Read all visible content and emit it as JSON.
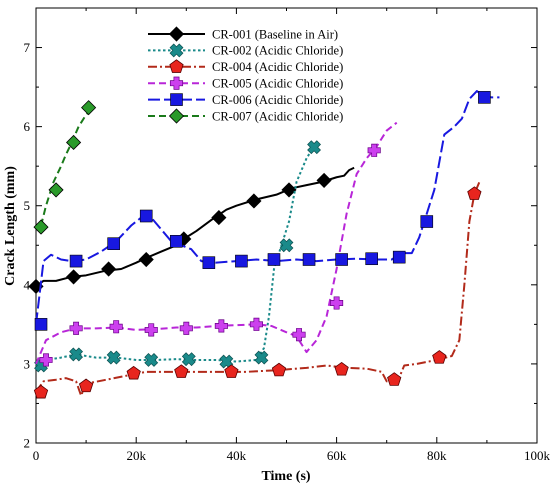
{
  "chart_data": {
    "type": "line",
    "xlabel": "Time (s)",
    "ylabel": "Crack Length (mm)",
    "xlim": [
      0,
      100000
    ],
    "ylim": [
      2,
      7.5
    ],
    "x_ticks": [
      0,
      20000,
      40000,
      60000,
      80000,
      100000
    ],
    "x_tick_labels": [
      "0",
      "20k",
      "40k",
      "60k",
      "80k",
      "100k"
    ],
    "y_ticks": [
      2,
      3,
      4,
      5,
      6,
      7
    ],
    "y_tick_labels": [
      "2",
      "3",
      "4",
      "5",
      "6",
      "7"
    ],
    "legend_position": "top-center",
    "grid": false,
    "series": [
      {
        "name": "CR-001 (Baseline in Air)",
        "color": "#000000",
        "dash": "solid",
        "marker": "diamond",
        "marker_fill": "#000000",
        "line": [
          [
            0,
            3.98
          ],
          [
            1500,
            4.05
          ],
          [
            4000,
            4.05
          ],
          [
            7000,
            4.1
          ],
          [
            10000,
            4.12
          ],
          [
            14000,
            4.18
          ],
          [
            17000,
            4.2
          ],
          [
            20000,
            4.28
          ],
          [
            22000,
            4.34
          ],
          [
            25000,
            4.42
          ],
          [
            28000,
            4.5
          ],
          [
            30000,
            4.6
          ],
          [
            32000,
            4.68
          ],
          [
            35000,
            4.82
          ],
          [
            38000,
            4.95
          ],
          [
            40000,
            5.0
          ],
          [
            44000,
            5.08
          ],
          [
            48000,
            5.14
          ],
          [
            51000,
            5.22
          ],
          [
            54000,
            5.26
          ],
          [
            57000,
            5.3
          ],
          [
            60000,
            5.36
          ],
          [
            61500,
            5.38
          ],
          [
            62500,
            5.45
          ],
          [
            63500,
            5.48
          ]
        ],
        "markers": [
          [
            0,
            3.98
          ],
          [
            7500,
            4.1
          ],
          [
            14500,
            4.2
          ],
          [
            22000,
            4.32
          ],
          [
            29500,
            4.58
          ],
          [
            36500,
            4.85
          ],
          [
            43500,
            5.06
          ],
          [
            50500,
            5.2
          ],
          [
            57500,
            5.32
          ]
        ]
      },
      {
        "name": "CR-002 (Acidic Chloride)",
        "color": "#1a8a8a",
        "dash": "dotted",
        "marker": "x",
        "marker_fill": "#1a8a8a",
        "line": [
          [
            0,
            2.98
          ],
          [
            2000,
            3.05
          ],
          [
            5000,
            3.08
          ],
          [
            8000,
            3.12
          ],
          [
            12000,
            3.08
          ],
          [
            16000,
            3.08
          ],
          [
            20000,
            3.05
          ],
          [
            24000,
            3.05
          ],
          [
            28000,
            3.06
          ],
          [
            32000,
            3.05
          ],
          [
            36000,
            3.05
          ],
          [
            40000,
            3.03
          ],
          [
            44000,
            3.05
          ],
          [
            45500,
            3.2
          ],
          [
            46500,
            3.6
          ],
          [
            47500,
            4.2
          ],
          [
            49000,
            4.5
          ],
          [
            50500,
            4.8
          ],
          [
            52000,
            5.3
          ],
          [
            54000,
            5.6
          ],
          [
            55500,
            5.75
          ]
        ],
        "markers": [
          [
            1000,
            2.98
          ],
          [
            8000,
            3.12
          ],
          [
            15500,
            3.08
          ],
          [
            23000,
            3.05
          ],
          [
            30500,
            3.06
          ],
          [
            38000,
            3.03
          ],
          [
            45000,
            3.08
          ],
          [
            50000,
            4.5
          ],
          [
            55500,
            5.74
          ]
        ]
      },
      {
        "name": "CR-004 (Acidic Chloride)",
        "color": "#b22a1a",
        "dash": "dashdot",
        "marker": "pentagon",
        "marker_fill": "#e8251e",
        "line": [
          [
            0,
            2.65
          ],
          [
            1500,
            2.78
          ],
          [
            4000,
            2.8
          ],
          [
            6000,
            2.82
          ],
          [
            8000,
            2.78
          ],
          [
            9000,
            2.6
          ],
          [
            10000,
            2.75
          ],
          [
            14000,
            2.8
          ],
          [
            18000,
            2.85
          ],
          [
            22000,
            2.9
          ],
          [
            28000,
            2.9
          ],
          [
            35000,
            2.9
          ],
          [
            42000,
            2.9
          ],
          [
            48000,
            2.92
          ],
          [
            54000,
            2.95
          ],
          [
            58000,
            2.98
          ],
          [
            62000,
            2.95
          ],
          [
            66000,
            2.94
          ],
          [
            69000,
            2.9
          ],
          [
            70000,
            2.78
          ],
          [
            72000,
            2.75
          ],
          [
            73500,
            2.98
          ],
          [
            76000,
            3.0
          ],
          [
            80000,
            3.05
          ],
          [
            83000,
            3.1
          ],
          [
            84500,
            3.3
          ],
          [
            85500,
            4.0
          ],
          [
            86500,
            4.8
          ],
          [
            87500,
            5.15
          ],
          [
            88500,
            5.3
          ]
        ],
        "markers": [
          [
            1000,
            2.64
          ],
          [
            10000,
            2.72
          ],
          [
            19500,
            2.88
          ],
          [
            29000,
            2.9
          ],
          [
            39000,
            2.9
          ],
          [
            48500,
            2.92
          ],
          [
            61000,
            2.93
          ],
          [
            71500,
            2.8
          ],
          [
            80500,
            3.08
          ],
          [
            87500,
            5.15
          ]
        ]
      },
      {
        "name": "CR-005 (Acidic Chloride)",
        "color": "#b826d8",
        "dash": "dashed",
        "marker": "plus",
        "marker_fill": "#cc40ee",
        "line": [
          [
            0,
            3.0
          ],
          [
            2000,
            3.3
          ],
          [
            5000,
            3.4
          ],
          [
            8000,
            3.45
          ],
          [
            12000,
            3.45
          ],
          [
            16000,
            3.46
          ],
          [
            20000,
            3.43
          ],
          [
            24000,
            3.44
          ],
          [
            28000,
            3.46
          ],
          [
            32000,
            3.46
          ],
          [
            36000,
            3.48
          ],
          [
            40000,
            3.49
          ],
          [
            44000,
            3.5
          ],
          [
            47000,
            3.48
          ],
          [
            50000,
            3.4
          ],
          [
            52000,
            3.35
          ],
          [
            54000,
            3.15
          ],
          [
            56000,
            3.3
          ],
          [
            58000,
            3.6
          ],
          [
            60000,
            4.2
          ],
          [
            62000,
            4.9
          ],
          [
            64000,
            5.4
          ],
          [
            66000,
            5.6
          ],
          [
            68000,
            5.75
          ],
          [
            70000,
            5.95
          ],
          [
            72000,
            6.05
          ]
        ],
        "markers": [
          [
            2000,
            3.05
          ],
          [
            8000,
            3.45
          ],
          [
            16000,
            3.47
          ],
          [
            23000,
            3.43
          ],
          [
            30000,
            3.45
          ],
          [
            37000,
            3.48
          ],
          [
            44000,
            3.5
          ],
          [
            52500,
            3.37
          ],
          [
            60000,
            3.77
          ],
          [
            67500,
            5.7
          ]
        ]
      },
      {
        "name": "CR-006 (Acidic Chloride)",
        "color": "#1818e0",
        "dash": "longdash",
        "marker": "square",
        "marker_fill": "#1818e0",
        "line": [
          [
            0,
            3.5
          ],
          [
            1500,
            4.3
          ],
          [
            3000,
            4.38
          ],
          [
            5000,
            4.32
          ],
          [
            7000,
            4.3
          ],
          [
            10000,
            4.32
          ],
          [
            13000,
            4.42
          ],
          [
            16000,
            4.55
          ],
          [
            19000,
            4.75
          ],
          [
            21000,
            4.85
          ],
          [
            23000,
            4.85
          ],
          [
            25000,
            4.7
          ],
          [
            27000,
            4.55
          ],
          [
            29000,
            4.5
          ],
          [
            31000,
            4.45
          ],
          [
            33000,
            4.3
          ],
          [
            36000,
            4.28
          ],
          [
            40000,
            4.3
          ],
          [
            44000,
            4.32
          ],
          [
            48000,
            4.3
          ],
          [
            52000,
            4.32
          ],
          [
            56000,
            4.3
          ],
          [
            60000,
            4.32
          ],
          [
            64000,
            4.33
          ],
          [
            68000,
            4.32
          ],
          [
            71000,
            4.32
          ],
          [
            73000,
            4.4
          ],
          [
            75000,
            4.4
          ],
          [
            76500,
            4.6
          ],
          [
            77500,
            4.8
          ],
          [
            79500,
            5.2
          ],
          [
            81500,
            5.9
          ],
          [
            83500,
            6.0
          ],
          [
            85000,
            6.1
          ],
          [
            86500,
            6.35
          ],
          [
            88000,
            6.45
          ],
          [
            89500,
            6.38
          ],
          [
            91000,
            6.37
          ],
          [
            92500,
            6.37
          ]
        ],
        "markers": [
          [
            1000,
            3.5
          ],
          [
            8000,
            4.3
          ],
          [
            15500,
            4.52
          ],
          [
            22000,
            4.87
          ],
          [
            28000,
            4.55
          ],
          [
            34500,
            4.28
          ],
          [
            41000,
            4.3
          ],
          [
            47500,
            4.32
          ],
          [
            54500,
            4.32
          ],
          [
            61000,
            4.32
          ],
          [
            67000,
            4.33
          ],
          [
            72500,
            4.35
          ],
          [
            78000,
            4.8
          ],
          [
            89500,
            6.37
          ]
        ]
      },
      {
        "name": "CR-007 (Acidic Chloride)",
        "color": "#1a7a1a",
        "dash": "dashed",
        "marker": "diamond",
        "marker_fill": "#2a9a2a",
        "line": [
          [
            1000,
            4.75
          ],
          [
            2000,
            5.0
          ],
          [
            3500,
            5.3
          ],
          [
            5000,
            5.5
          ],
          [
            6000,
            5.65
          ],
          [
            7000,
            5.78
          ],
          [
            8500,
            6.0
          ],
          [
            10000,
            6.15
          ],
          [
            11500,
            6.25
          ]
        ],
        "markers": [
          [
            1000,
            4.73
          ],
          [
            4000,
            5.2
          ],
          [
            7500,
            5.8
          ],
          [
            10500,
            6.24
          ]
        ]
      }
    ]
  }
}
